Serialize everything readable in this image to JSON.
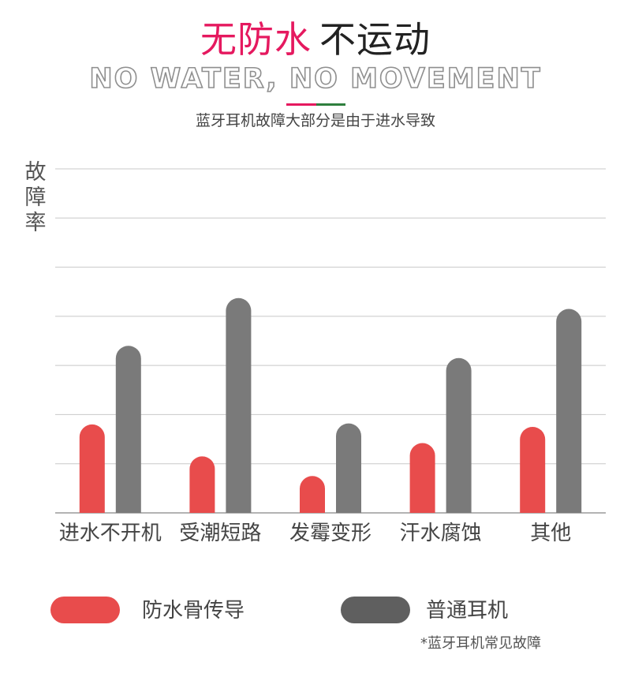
{
  "header": {
    "title_accent": "无防水",
    "title_main": "不运动",
    "title_en": "NO WATER, NO MOVEMENT",
    "caption": "蓝牙耳机故障大部分是由于进水导致"
  },
  "colors": {
    "accent": "#e5195f",
    "divider_green": "#2f7f3e",
    "series_1": "#e84c4c",
    "series_2": "#7a7a7a",
    "legend_series_2": "#5f5f5f",
    "grid": "#c8c8c8"
  },
  "chart_data": {
    "type": "bar",
    "title": "",
    "xlabel": "",
    "ylabel": "故障率",
    "categories": [
      "进水不开机",
      "受潮短路",
      "发霉变形",
      "汗水腐蚀",
      "其他"
    ],
    "series": [
      {
        "name": "防水骨传导",
        "values": [
          1.8,
          1.15,
          0.75,
          1.42,
          1.75
        ]
      },
      {
        "name": "普通耳机",
        "values": [
          3.4,
          4.37,
          1.82,
          3.15,
          4.15
        ]
      }
    ],
    "ylim": [
      0,
      7
    ],
    "yticks": [
      0,
      1,
      2,
      3,
      4,
      5,
      6,
      7
    ],
    "ytick_labels_visible": false,
    "grid": true,
    "legend": "bottom"
  },
  "footnote": "*蓝牙耳机常见故障"
}
